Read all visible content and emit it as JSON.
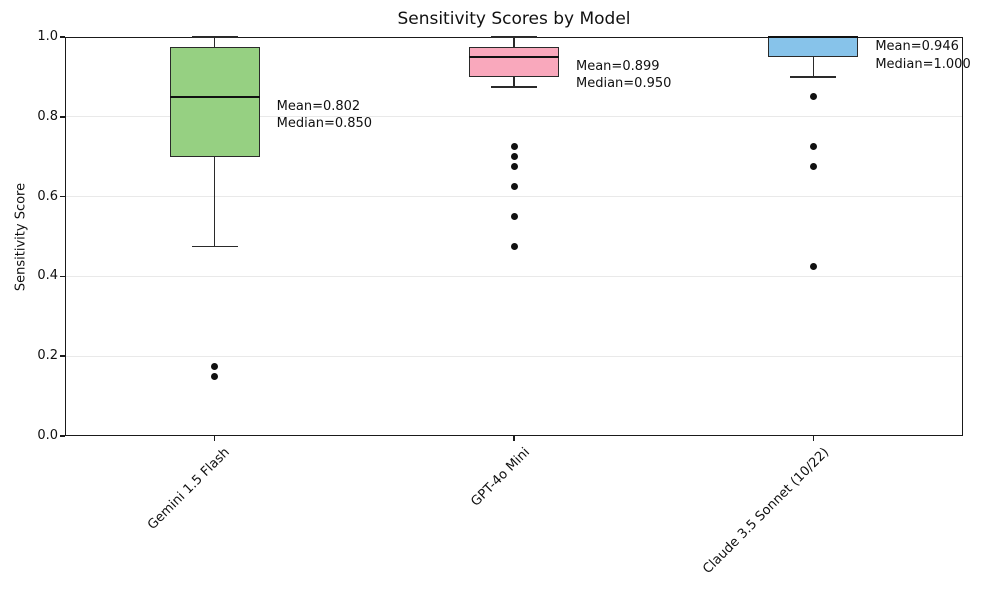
{
  "chart_data": {
    "type": "boxplot",
    "title": "Sensitivity Scores by Model",
    "xlabel": "",
    "ylabel": "Sensitivity Score",
    "ylim": [
      0.0,
      1.0
    ],
    "grid": "horizontal",
    "yticks": [
      {
        "value": 0.0,
        "label": "0.0"
      },
      {
        "value": 0.2,
        "label": "0.2"
      },
      {
        "value": 0.4,
        "label": "0.4"
      },
      {
        "value": 0.6,
        "label": "0.6"
      },
      {
        "value": 0.8,
        "label": "0.8"
      },
      {
        "value": 1.0,
        "label": "1.0"
      }
    ],
    "grid_yticks": [
      0.2,
      0.4,
      0.6,
      0.8
    ],
    "categories": [
      "Gemini 1.5 Flash",
      "GPT-4o Mini",
      "Claude 3.5 Sonnet (10/22)"
    ],
    "series": [
      {
        "name": "Gemini 1.5 Flash",
        "box_color": "#96d082",
        "q1": 0.7,
        "median": 0.85,
        "q3": 0.975,
        "whisker_low": 0.475,
        "whisker_high": 1.0,
        "outliers": [
          0.175,
          0.15
        ],
        "mean": 0.802,
        "annotation_lines": [
          "Mean=0.802",
          "Median=0.850"
        ]
      },
      {
        "name": "GPT-4o Mini",
        "box_color": "#f9a8bc",
        "q1": 0.9,
        "median": 0.95,
        "q3": 0.975,
        "whisker_low": 0.875,
        "whisker_high": 1.0,
        "outliers": [
          0.725,
          0.7,
          0.675,
          0.625,
          0.55,
          0.475
        ],
        "mean": 0.899,
        "annotation_lines": [
          "Mean=0.899",
          "Median=0.950"
        ]
      },
      {
        "name": "Claude 3.5 Sonnet (10/22)",
        "box_color": "#87c3ea",
        "q1": 0.95,
        "median": 1.0,
        "q3": 1.0,
        "whisker_low": 0.9,
        "whisker_high": 1.0,
        "outliers": [
          0.85,
          0.725,
          0.675,
          0.425
        ],
        "mean": 0.946,
        "annotation_lines": [
          "Mean=0.946",
          "Median=1.000"
        ]
      }
    ]
  }
}
